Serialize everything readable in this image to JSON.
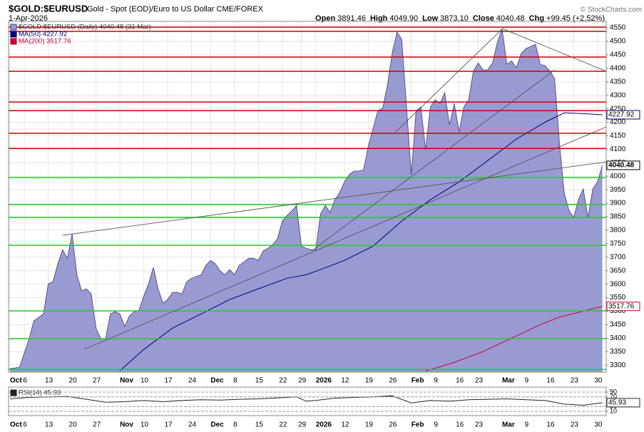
{
  "header": {
    "title": "$GOLD:$EURUSD",
    "subtitle": "Gold - Spot (EOD)/Euro to US Dollar CME/FOREX",
    "date": "1-Apr-2026",
    "copyright": "© StockCharts.com",
    "quote": [
      {
        "label": "Open",
        "value": "3891.46"
      },
      {
        "label": "High",
        "value": "4049.90"
      },
      {
        "label": "Low",
        "value": "3873.10"
      },
      {
        "label": "Close",
        "value": "4040.48"
      },
      {
        "label": "Chg",
        "value": "+99.45 (+2.52%)"
      }
    ]
  },
  "chart_data": [
    {
      "type": "area",
      "ylim": [
        3274,
        4574
      ],
      "xlim": [
        -0.3,
        124.8
      ],
      "grid": true,
      "yticks": [
        3300,
        3350,
        3400,
        3450,
        3500,
        3550,
        3600,
        3650,
        3700,
        3750,
        3800,
        3850,
        3900,
        3950,
        4000,
        4050,
        4100,
        4150,
        4200,
        4250,
        4300,
        4350,
        4400,
        4450,
        4500,
        4550
      ],
      "xticks": [
        {
          "value": 0,
          "label": "Oct"
        },
        {
          "value": 3,
          "label": "6"
        },
        {
          "value": 8,
          "label": "13"
        },
        {
          "value": 13,
          "label": "20"
        },
        {
          "value": 18,
          "label": "27"
        },
        {
          "value": 23,
          "label": "Nov"
        },
        {
          "value": 28,
          "label": "10"
        },
        {
          "value": 33,
          "label": "17"
        },
        {
          "value": 38,
          "label": "24"
        },
        {
          "value": 42,
          "label": "Dec"
        },
        {
          "value": 47,
          "label": "8"
        },
        {
          "value": 52,
          "label": "15"
        },
        {
          "value": 57,
          "label": "22"
        },
        {
          "value": 61,
          "label": "29"
        },
        {
          "value": 64,
          "label": "2026"
        },
        {
          "value": 70,
          "label": "12"
        },
        {
          "value": 75,
          "label": "19"
        },
        {
          "value": 80,
          "label": "26"
        },
        {
          "value": 84,
          "label": "Feb"
        },
        {
          "value": 89,
          "label": "9"
        },
        {
          "value": 94,
          "label": "16"
        },
        {
          "value": 98,
          "label": "23"
        },
        {
          "value": 103,
          "label": "Mar"
        },
        {
          "value": 108,
          "label": "9"
        },
        {
          "value": 113,
          "label": "16"
        },
        {
          "value": 118,
          "label": "23"
        },
        {
          "value": 123,
          "label": "30"
        }
      ],
      "levels": [
        {
          "value": 4553,
          "color": "#cc0000"
        },
        {
          "value": 4537,
          "color": "#cc0000"
        },
        {
          "value": 4442,
          "color": "#cc0000"
        },
        {
          "value": 4389,
          "color": "#cc0000"
        },
        {
          "value": 4275,
          "color": "#cc0000"
        },
        {
          "value": 4243,
          "color": "#cc0000"
        },
        {
          "value": 4159,
          "color": "#cc0000"
        },
        {
          "value": 4103,
          "color": "#cc0000"
        },
        {
          "value": 3995,
          "color": "#22cc22"
        },
        {
          "value": 3895,
          "color": "#22cc22"
        },
        {
          "value": 3847,
          "color": "#22cc22"
        },
        {
          "value": 3744,
          "color": "#22cc22"
        },
        {
          "value": 3501,
          "color": "#22cc22"
        },
        {
          "value": 3398,
          "color": "#22cc22"
        },
        {
          "value": 3284,
          "color": "#22cc22"
        }
      ],
      "trendlines": [
        {
          "x": [
            11,
            124.8
          ],
          "y": [
            3781,
            4053
          ]
        },
        {
          "x": [
            15.5,
            124.8
          ],
          "y": [
            3358,
            4183
          ]
        },
        {
          "x": [
            63.1,
            114
          ],
          "y": [
            3723,
            4394
          ]
        },
        {
          "x": [
            80.7,
            103.1
          ],
          "y": [
            4164,
            4547
          ]
        },
        {
          "x": [
            103.1,
            124.8
          ],
          "y": [
            4547,
            4389
          ]
        }
      ],
      "series": [
        {
          "name": "$GOLD:$EURUSD (Daily) 4040.48 (31 Mar)",
          "color": "#9a9ad2",
          "line_color": "#3a3a80",
          "x": [
            0,
            2,
            4,
            5,
            6,
            7,
            8,
            9,
            10,
            11,
            12,
            13,
            14,
            15,
            16,
            17,
            18,
            19,
            20,
            21,
            22,
            23,
            24,
            25,
            26,
            27,
            28,
            29,
            30,
            31,
            32,
            33,
            34,
            35,
            36,
            37,
            38,
            39,
            40,
            41,
            42,
            43,
            44,
            45,
            46,
            47,
            48,
            49,
            50,
            51,
            52,
            53,
            54,
            55,
            56,
            57,
            58,
            59,
            60,
            61,
            62,
            63,
            64,
            65,
            66,
            67,
            68,
            69,
            70,
            71,
            72,
            73,
            74,
            75,
            76,
            77,
            78,
            79,
            80,
            81,
            82,
            83,
            84,
            85,
            86,
            87,
            88,
            89,
            90,
            91,
            92,
            93,
            94,
            95,
            96,
            97,
            98,
            99,
            100,
            101,
            102,
            103,
            104,
            105,
            106,
            107,
            108,
            109,
            110,
            111,
            112,
            113,
            114,
            115,
            116,
            117,
            118,
            119,
            120,
            121,
            122,
            123,
            124
          ],
          "values": [
            3287,
            3292,
            3398,
            3464,
            3477,
            3490,
            3601,
            3609,
            3675,
            3728,
            3696,
            3786,
            3635,
            3575,
            3583,
            3564,
            3437,
            3398,
            3398,
            3490,
            3498,
            3490,
            3443,
            3482,
            3498,
            3503,
            3556,
            3601,
            3662,
            3583,
            3530,
            3543,
            3570,
            3570,
            3564,
            3609,
            3622,
            3628,
            3635,
            3670,
            3688,
            3675,
            3649,
            3635,
            3654,
            3635,
            3670,
            3683,
            3696,
            3696,
            3688,
            3723,
            3733,
            3747,
            3768,
            3834,
            3855,
            3871,
            3892,
            3741,
            3733,
            3728,
            3728,
            3860,
            3892,
            3866,
            3913,
            3939,
            3979,
            4006,
            4019,
            4019,
            4024,
            4111,
            4177,
            4243,
            4251,
            4336,
            4455,
            4534,
            4508,
            4257,
            4006,
            4243,
            4257,
            4098,
            4257,
            4283,
            4270,
            4310,
            4191,
            4270,
            4164,
            4257,
            4283,
            4389,
            4420,
            4394,
            4394,
            4420,
            4495,
            4547,
            4415,
            4428,
            4402,
            4455,
            4473,
            4481,
            4489,
            4415,
            4410,
            4389,
            4362,
            4124,
            3939,
            3873,
            3847,
            3913,
            3953,
            3847,
            3953,
            3979,
            4040.48
          ]
        },
        {
          "name": "MA(50) 4227.92",
          "color": "#00007a",
          "x": [
            23,
            28,
            34,
            40,
            46,
            52,
            58,
            62,
            65,
            70,
            76,
            82,
            88,
            94,
            100,
            106,
            112,
            116,
            120,
            124
          ],
          "values": [
            3279,
            3358,
            3437,
            3490,
            3543,
            3583,
            3622,
            3635,
            3654,
            3688,
            3741,
            3834,
            3913,
            3979,
            4058,
            4138,
            4200,
            4235,
            4232,
            4227.92
          ]
        },
        {
          "name": "MA(200) 3517.76",
          "color": "#cc0033",
          "x": [
            87,
            93,
            99,
            105,
            111,
            115,
            120,
            124
          ],
          "values": [
            3278,
            3310,
            3350,
            3400,
            3450,
            3478,
            3500,
            3517.76
          ]
        }
      ]
    },
    {
      "type": "line",
      "ylim": [
        -8,
        111
      ],
      "xlim": [
        -0.3,
        124.8
      ],
      "yticks": [
        10,
        30,
        70,
        90
      ],
      "fill_above": 70,
      "series": [
        {
          "name": "RSI(14) 45.93",
          "color": "#222222",
          "fill": "#4a6a4a",
          "x": [
            0,
            4,
            8,
            12,
            16,
            20,
            24,
            28,
            32,
            36,
            40,
            44,
            48,
            52,
            56,
            60,
            62,
            64,
            68,
            72,
            76,
            80,
            84,
            88,
            92,
            96,
            100,
            104,
            108,
            112,
            116,
            120,
            124
          ],
          "values": [
            62,
            68,
            70,
            72,
            60,
            48,
            50,
            55,
            50,
            55,
            58,
            57,
            60,
            62,
            66,
            70,
            52,
            55,
            65,
            68,
            70,
            75,
            45,
            55,
            52,
            58,
            60,
            62,
            58,
            55,
            40,
            35,
            45.93
          ]
        }
      ]
    }
  ]
}
